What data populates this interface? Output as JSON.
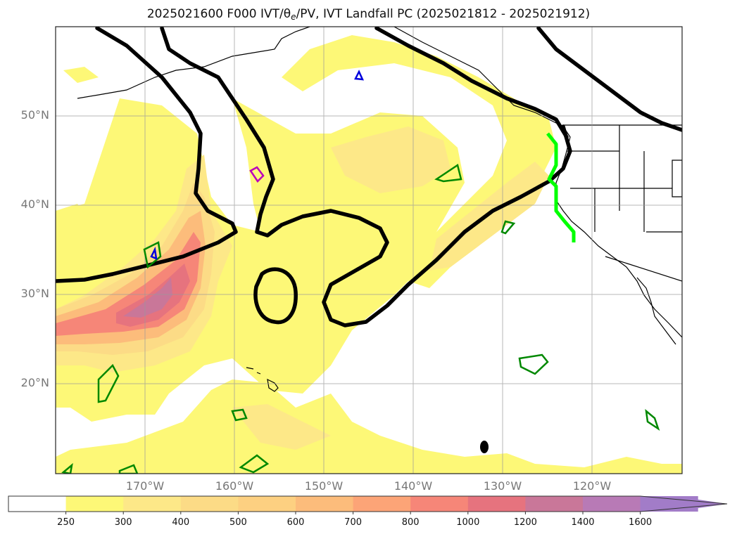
{
  "title": {
    "prefix": "2025021600 F000 IVT/",
    "theta": "θ",
    "theta_sub": "e",
    "suffix": "/PV, IVT Landfall PC (2025021812 - 2025021912)"
  },
  "lat_labels": [
    "50°N",
    "40°N",
    "30°N",
    "20°N"
  ],
  "lon_labels": [
    "170°W",
    "160°W",
    "150°W",
    "140°W",
    "130°W",
    "120°W"
  ],
  "colorbar": {
    "ticks": [
      "250",
      "300",
      "400",
      "500",
      "600",
      "700",
      "800",
      "1000",
      "1200",
      "1400",
      "1600"
    ],
    "colors": [
      "#ffffff",
      "#fdf877",
      "#fde888",
      "#fcdb86",
      "#fdd081",
      "#fcbc7b",
      "#fca477",
      "#f68678",
      "#e6737e",
      "#c97799",
      "#b87ab6",
      "#a27cc8"
    ]
  }
}
